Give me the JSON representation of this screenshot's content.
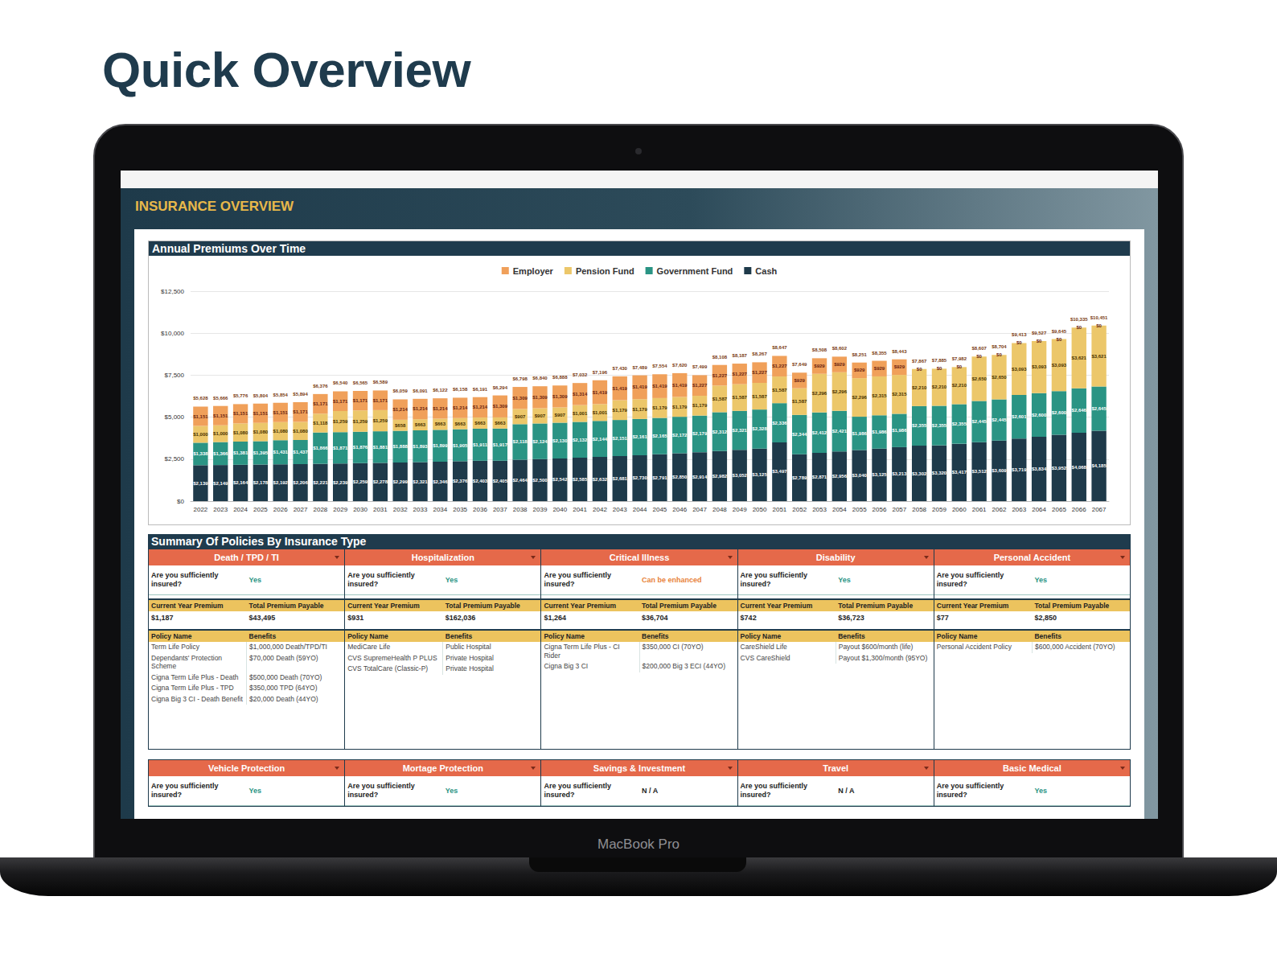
{
  "heading": "Quick Overview",
  "laptop_label": "MacBook Pro",
  "panel_title": "INSURANCE OVERVIEW",
  "chart_data": {
    "type": "bar",
    "title": "Annual Premiums Over Time",
    "stacked": true,
    "data_labels": true,
    "grid": true,
    "legend": "top",
    "categories": [
      "2022",
      "2023",
      "2024",
      "2025",
      "2026",
      "2027",
      "2028",
      "2029",
      "2030",
      "2031",
      "2032",
      "2033",
      "2034",
      "2035",
      "2036",
      "2037",
      "2038",
      "2039",
      "2040",
      "2041",
      "2042",
      "2043",
      "2044",
      "2045",
      "2046",
      "2047",
      "2048",
      "2049",
      "2050",
      "2051",
      "2052",
      "2053",
      "2054",
      "2055",
      "2056",
      "2057",
      "2058",
      "2059",
      "2060",
      "2061",
      "2062",
      "2063",
      "2064",
      "2065",
      "2066",
      "2067"
    ],
    "series": [
      {
        "name": "Employer",
        "color": "#f0a05a",
        "values": [
          1151,
          1151,
          1151,
          1151,
          1151,
          1171,
          1171,
          1171,
          1171,
          1171,
          1214,
          1214,
          1214,
          1214,
          1214,
          1309,
          1309,
          1309,
          1309,
          1314,
          1419,
          1419,
          1419,
          1419,
          1419,
          1227,
          1227,
          1227,
          1227,
          1227,
          929,
          929,
          929,
          929,
          929,
          929,
          0,
          0,
          0,
          0,
          0,
          0,
          0,
          0,
          0,
          0
        ],
        "value_labels": [
          "$1,151",
          "$1,151",
          "$1,151",
          "$1,151",
          "$1,151",
          "$1,171",
          "$1,171",
          "$1,171",
          "$1,171",
          "$1,171",
          "$1,214",
          "$1,214",
          "$1,214",
          "$1,214",
          "$1,214",
          "$1,309",
          "$1,309",
          "$1,309",
          "$1,309",
          "$1,314",
          "$1,419",
          "$1,419",
          "$1,419",
          "$1,419",
          "$1,419",
          "$1,227",
          "$1,227",
          "$1,227",
          "$1,227",
          "$1,227",
          "$929",
          "$929",
          "$929",
          "$929",
          "$929",
          "$929",
          "$0",
          "$0",
          "$0",
          "$0",
          "$0",
          "$0",
          "$0",
          "$0",
          "$0",
          "$0"
        ]
      },
      {
        "name": "Pension Fund",
        "color": "#ecc76a",
        "values": [
          1000,
          1000,
          1080,
          1080,
          1080,
          1080,
          1118,
          1259,
          1259,
          1259,
          658,
          663,
          663,
          663,
          663,
          663,
          907,
          907,
          907,
          1001,
          1001,
          1179,
          1179,
          1179,
          1179,
          1179,
          1587,
          1587,
          1587,
          1587,
          1587,
          2296,
          2296,
          2296,
          2315,
          2315,
          2210,
          2210,
          2210,
          2650,
          2650,
          3093,
          3093,
          3093,
          3621,
          3621
        ],
        "value_labels": [
          "$1,000",
          "$1,000",
          "$1,080",
          "$1,080",
          "$1,080",
          "$1,080",
          "$1,118",
          "$1,259",
          "$1,259",
          "$1,259",
          "$658",
          "$663",
          "$663",
          "$663",
          "$663",
          "$663",
          "$907",
          "$907",
          "$907",
          "$1,001",
          "$1,001",
          "$1,179",
          "$1,179",
          "$1,179",
          "$1,179",
          "$1,179",
          "$1,587",
          "$1,587",
          "$1,587",
          "$1,587",
          "$1,587",
          "$2,296",
          "$2,296",
          "$2,296",
          "$2,315",
          "$2,315",
          "$2,210",
          "$2,210",
          "$2,210",
          "$2,650",
          "$2,650",
          "$3,093",
          "$3,093",
          "$3,093",
          "$3,621",
          "$3,621"
        ]
      },
      {
        "name": "Government Fund",
        "color": "#2a9484",
        "values": [
          1338,
          1366,
          1381,
          1395,
          1431,
          1437,
          1866,
          1871,
          1876,
          1881,
          1888,
          1893,
          1899,
          1905,
          1911,
          1917,
          2118,
          2124,
          2130,
          2132,
          2144,
          2151,
          2161,
          2165,
          2172,
          2179,
          2312,
          2321,
          2328,
          2336,
          2344,
          2412,
          2421,
          1986,
          1986,
          1986,
          2355,
          2355,
          2355,
          2445,
          2445,
          2601,
          2600,
          2600,
          2646,
          2645
        ],
        "value_labels": [
          "$1,338",
          "$1,366",
          "$1,381",
          "$1,395",
          "$1,431",
          "$1,437",
          "$1,866",
          "$1,871",
          "$1,876",
          "$1,881",
          "$1,888",
          "$1,893",
          "$1,899",
          "$1,905",
          "$1,911",
          "$1,917",
          "$2,118",
          "$2,124",
          "$2,130",
          "$2,132",
          "$2,144",
          "$2,151",
          "$2,161",
          "$2,165",
          "$2,172",
          "$2,179",
          "$2,312",
          "$2,321",
          "$2,328",
          "$2,336",
          "$2,344",
          "$2,412",
          "$2,421",
          "$1,986",
          "$1,986",
          "$1,986",
          "$2,355",
          "$2,355",
          "$2,355",
          "$2,445",
          "$2,445",
          "$2,601",
          "$2,600",
          "$2,600",
          "$2,646",
          "$2,645"
        ]
      },
      {
        "name": "Cash",
        "color": "#1e3a4a",
        "values": [
          2139,
          2149,
          2164,
          2178,
          2192,
          2206,
          2221,
          2239,
          2259,
          2278,
          2299,
          2321,
          2346,
          2376,
          2403,
          2405,
          2464,
          2500,
          2542,
          2585,
          2632,
          2681,
          2730,
          2791,
          2850,
          2914,
          2982,
          3052,
          3125,
          3497,
          2789,
          2871,
          2956,
          3040,
          3125,
          3213,
          3302,
          3320,
          3417,
          3512,
          3609,
          3719,
          3834,
          3952,
          4068,
          4185
        ],
        "value_labels": [
          "$2,139",
          "$2,149",
          "$2,164",
          "$2,178",
          "$2,192",
          "$2,206",
          "$2,221",
          "$2,239",
          "$2,259",
          "$2,278",
          "$2,299",
          "$2,321",
          "$2,346",
          "$2,376",
          "$2,403",
          "$2,405",
          "$2,464",
          "$2,500",
          "$2,542",
          "$2,585",
          "$2,632",
          "$2,681",
          "$2,730",
          "$2,791",
          "$2,850",
          "$2,914",
          "$2,982",
          "$3,052",
          "$3,125",
          "$3,497",
          "$2,789",
          "$2,871",
          "$2,956",
          "$3,040",
          "$3,125",
          "$3,213",
          "$3,302",
          "$3,320",
          "$3,417",
          "$3,512",
          "$3,609",
          "$3,719",
          "$3,834",
          "$3,952",
          "$4,068",
          "$4,185"
        ]
      }
    ],
    "totals": {
      "values": [
        5628,
        5666,
        5776,
        5804,
        5854,
        5894,
        6376,
        6540,
        6565,
        6589,
        6059,
        6091,
        6122,
        6158,
        6191,
        6294,
        6798,
        6840,
        6888,
        7032,
        7196,
        7430,
        7489,
        7554,
        7620,
        7499,
        8108,
        8187,
        8267,
        8647,
        7649,
        8508,
        8602,
        8251,
        8355,
        8443,
        7867,
        7885,
        7982,
        8607,
        8704,
        9413,
        9527,
        9645,
        10335,
        10451
      ],
      "value_labels": [
        "$5,628",
        "$5,666",
        "$5,776",
        "$5,804",
        "$5,854",
        "$5,894",
        "$6,376",
        "$6,540",
        "$6,565",
        "$6,589",
        "$6,059",
        "$6,091",
        "$6,122",
        "$6,158",
        "$6,191",
        "$6,294",
        "$6,798",
        "$6,840",
        "$6,888",
        "$7,032",
        "$7,196",
        "$7,430",
        "$7,489",
        "$7,554",
        "$7,620",
        "$7,499",
        "$8,108",
        "$8,187",
        "$8,267",
        "$8,647",
        "$7,649",
        "$8,508",
        "$8,602",
        "$8,251",
        "$8,355",
        "$8,443",
        "$7,867",
        "$7,885",
        "$7,982",
        "$8,607",
        "$8,704",
        "$9,413",
        "$9,527",
        "$9,645",
        "$10,335",
        "$10,451"
      ]
    },
    "ylim": [
      0,
      12500
    ],
    "yticks": [
      {
        "value": 0,
        "label": "$0"
      },
      {
        "value": 2500,
        "label": "$2,500"
      },
      {
        "value": 5000,
        "label": "$5,000"
      },
      {
        "value": 7500,
        "label": "$7,500"
      },
      {
        "value": 10000,
        "label": "$10,000"
      },
      {
        "value": 12500,
        "label": "$12,500"
      }
    ]
  },
  "summary": {
    "title": "Summary Of Policies By Insurance Type",
    "labels": {
      "sufficiency": "Are you sufficiently insured?",
      "current_premium": "Current Year Premium",
      "total_premium": "Total Premium Payable",
      "policy_name": "Policy Name",
      "benefits": "Benefits"
    },
    "rows": [
      [
        {
          "name": "Death / TPD / TI",
          "answer": "Yes",
          "color": "#2a9484",
          "current_premium": "$1,187",
          "total_premium": "$43,495",
          "policies": [
            [
              "Term Life Policy",
              "$1,000,000 Death/TPD/TI"
            ],
            [
              "Dependants' Protection Scheme",
              "$70,000 Death (59YO)"
            ],
            [
              "Cigna Term Life Plus - Death",
              "$500,000 Death (70YO)"
            ],
            [
              "Cigna Term Life Plus - TPD",
              "$350,000 TPD (64YO)"
            ],
            [
              "Cigna Big 3 CI - Death Benefit",
              "$20,000 Death (44YO)"
            ]
          ]
        },
        {
          "name": "Hospitalization",
          "answer": "Yes",
          "color": "#2a9484",
          "current_premium": "$931",
          "total_premium": "$162,036",
          "policies": [
            [
              "MediCare Life",
              "Public Hospital"
            ],
            [
              "CVS SupremeHealth P PLUS",
              "Private Hospital"
            ],
            [
              "CVS TotalCare (Classic-P)",
              "Private Hospital"
            ]
          ]
        },
        {
          "name": "Critical Illness",
          "answer": "Can be enhanced",
          "color": "#e8823a",
          "current_premium": "$1,264",
          "total_premium": "$36,704",
          "policies": [
            [
              "Cigna Term Life Plus - CI Rider",
              "$350,000 CI (70YO)"
            ],
            [
              "Cigna Big 3 CI",
              "$200,000 Big 3 ECI (44YO)"
            ]
          ]
        },
        {
          "name": "Disability",
          "answer": "Yes",
          "color": "#2a9484",
          "current_premium": "$742",
          "total_premium": "$36,723",
          "policies": [
            [
              "CareShield Life",
              "Payout $600/month (life)"
            ],
            [
              "CVS CareShield",
              "Payout $1,300/month (95YO)"
            ]
          ]
        },
        {
          "name": "Personal Accident",
          "answer": "Yes",
          "color": "#2a9484",
          "current_premium": "$77",
          "total_premium": "$2,850",
          "policies": [
            [
              "Personal Accident Policy",
              "$600,000 Accident (70YO)"
            ]
          ]
        }
      ],
      [
        {
          "name": "Vehicle Protection",
          "answer": "Yes",
          "color": "#2a9484"
        },
        {
          "name": "Mortage Protection",
          "answer": "Yes",
          "color": "#2a9484"
        },
        {
          "name": "Savings & Investment",
          "answer": "N / A",
          "color": "#222222"
        },
        {
          "name": "Travel",
          "answer": "N / A",
          "color": "#222222"
        },
        {
          "name": "Basic Medical",
          "answer": "Yes",
          "color": "#2a9484"
        }
      ]
    ]
  }
}
